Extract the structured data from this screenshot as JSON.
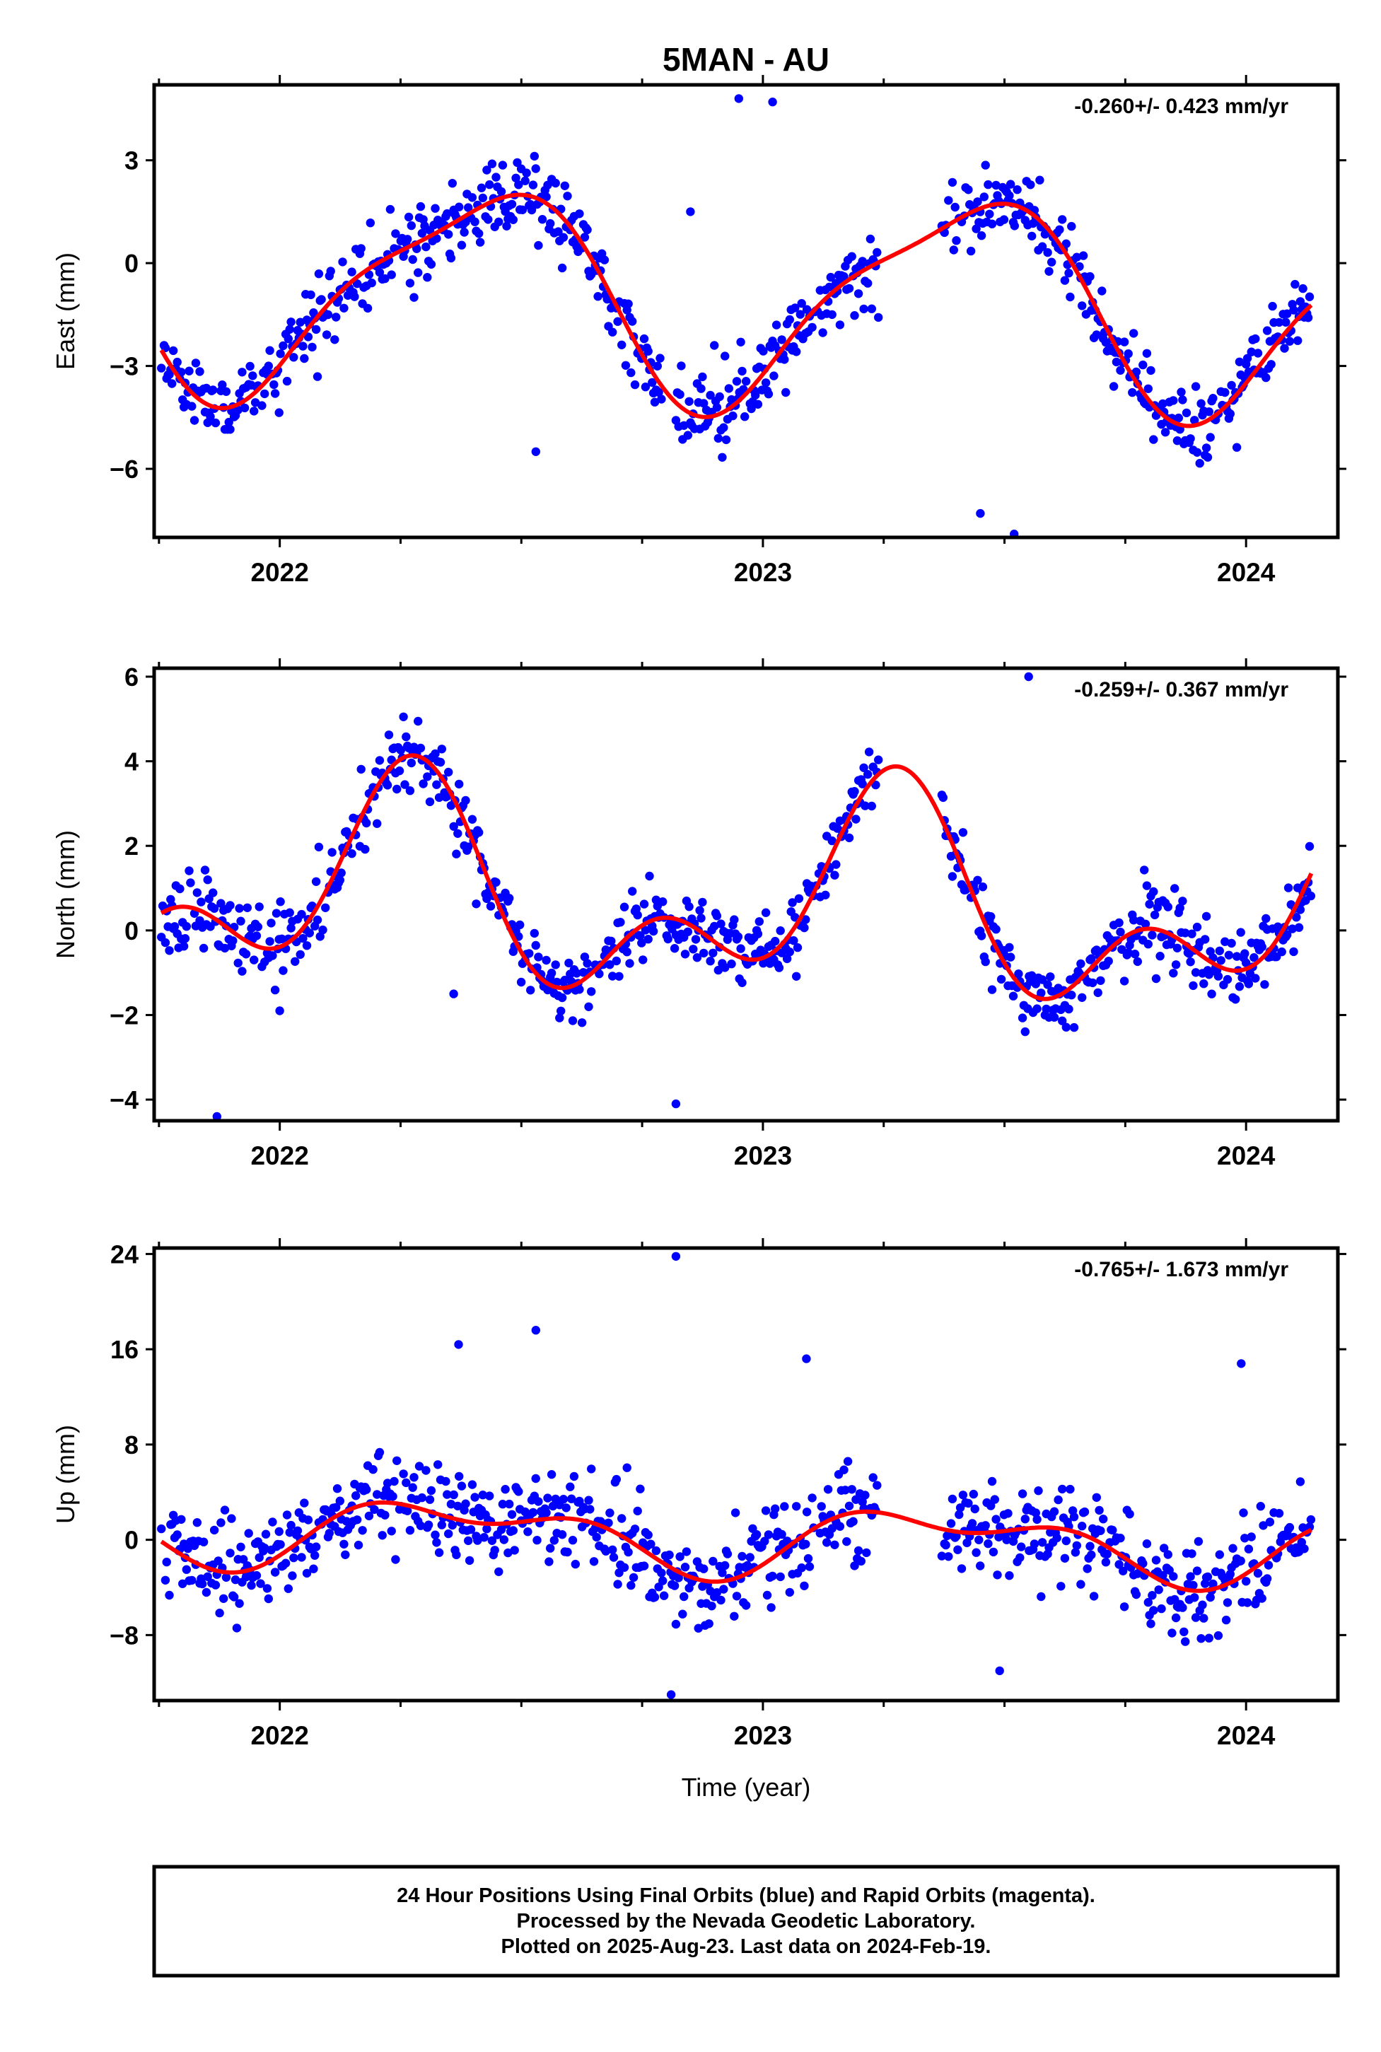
{
  "chart_data": [
    {
      "type": "scatter",
      "title": "5MAN - AU",
      "ylabel": "East (mm)",
      "xlabel": "",
      "xlim": [
        2021.74,
        2024.19
      ],
      "ylim": [
        -8.0,
        5.2
      ],
      "yticks": [
        -6,
        -3,
        0,
        3
      ],
      "xticks": [
        2022,
        2023,
        2024
      ],
      "rate_annotation": "-0.260+/- 0.423 mm/yr",
      "fit": {
        "mean": -0.98,
        "trend": -0.26,
        "a1": -2.55,
        "b1": 1.45,
        "a2": 0.3,
        "b2": 0.7
      },
      "series": [
        {
          "name": "Final Orbits",
          "color": "#0000ff",
          "seed": 11,
          "noise": 1.0,
          "outliers": [
            [
              2022.85,
              1.5
            ],
            [
              2022.95,
              4.8
            ],
            [
              2023.02,
              4.7
            ],
            [
              2023.45,
              -7.3
            ],
            [
              2023.52,
              -7.9
            ],
            [
              2022.53,
              -5.5
            ]
          ]
        }
      ],
      "model_color": "#ff0000"
    },
    {
      "type": "scatter",
      "title": "",
      "ylabel": "North (mm)",
      "xlabel": "",
      "xlim": [
        2021.74,
        2024.19
      ],
      "ylim": [
        -4.5,
        6.2
      ],
      "yticks": [
        -4,
        -2,
        0,
        2,
        4,
        6
      ],
      "xticks": [
        2022,
        2023,
        2024
      ],
      "rate_annotation": "-0.259+/- 0.367 mm/yr",
      "fit": {
        "mean": 0.66,
        "trend": -0.26,
        "a1": 0.0,
        "b1": 1.9,
        "a2": -1.3,
        "b2": -0.6
      },
      "series": [
        {
          "name": "Final Orbits",
          "color": "#0000ff",
          "seed": 23,
          "noise": 0.8,
          "outliers": [
            [
              2021.87,
              -4.4
            ],
            [
              2022.82,
              -4.1
            ],
            [
              2023.55,
              6.0
            ],
            [
              2022.36,
              -1.5
            ],
            [
              2022.0,
              -1.9
            ]
          ]
        }
      ],
      "model_color": "#ff0000"
    },
    {
      "type": "scatter",
      "title": "",
      "ylabel": "Up (mm)",
      "xlabel": "Time (year)",
      "xlim": [
        2021.74,
        2024.19
      ],
      "ylim": [
        -13.5,
        24.5
      ],
      "yticks": [
        -8,
        0,
        8,
        16,
        24
      ],
      "xticks": [
        2022,
        2023,
        2024
      ],
      "rate_annotation": "-0.765+/- 1.673 mm/yr",
      "fit": {
        "mean": 0.15,
        "trend": -0.77,
        "a1": -1.6,
        "b1": 1.7,
        "a2": -0.6,
        "b2": 1.3
      },
      "series": [
        {
          "name": "Final Orbits",
          "color": "#0000ff",
          "seed": 37,
          "noise": 3.6,
          "outliers": [
            [
              2022.82,
              23.8
            ],
            [
              2022.53,
              17.6
            ],
            [
              2022.37,
              16.4
            ],
            [
              2023.09,
              15.2
            ],
            [
              2023.99,
              14.8
            ],
            [
              2022.81,
              -13.0
            ],
            [
              2023.49,
              -11.0
            ]
          ]
        }
      ],
      "model_color": "#ff0000"
    }
  ],
  "footer": {
    "line1": "24 Hour Positions Using Final Orbits (blue) and Rapid Orbits (magenta).",
    "line2": "Processed by the Nevada Geodetic Laboratory.",
    "line3": "Plotted on 2025-Aug-23. Last data on 2024-Feb-19."
  }
}
